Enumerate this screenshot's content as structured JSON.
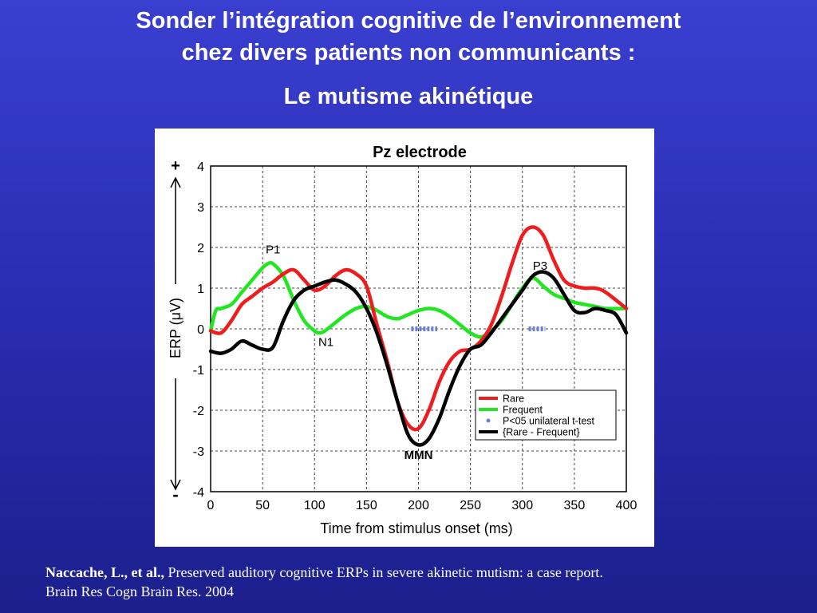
{
  "slide": {
    "title_line1": "Sonder l’intégration cognitive de l’environnement",
    "title_line2": "chez divers patients non communicants :",
    "subtitle": "Le mutisme akinétique"
  },
  "citation": {
    "authors": "Naccache, L., et al.,",
    "title": " Preserved auditory cognitive ERPs in severe akinetic mutism: a case report.",
    "journal": "Brain Res Cogn Brain Res. 2004"
  },
  "colors": {
    "rare": "#ee1c1c",
    "frequent": "#22e622",
    "difference": "#000000",
    "significance": "#6a7fd8"
  },
  "chart_data": {
    "type": "line",
    "title": "Pz electrode",
    "xlabel": "Time from stimulus onset (ms)",
    "ylabel": "ERP (μV)",
    "xlim": [
      0,
      400
    ],
    "ylim": [
      -4,
      4
    ],
    "xticks": [
      "0",
      "50",
      "100",
      "150",
      "200",
      "250",
      "300",
      "350",
      "400"
    ],
    "yticks": [
      "4",
      "3",
      "2",
      "1",
      "0",
      "-1",
      "-2",
      "-3",
      "-4"
    ],
    "grid": true,
    "polarity_plus": "+",
    "polarity_minus": "-",
    "legend_position": "bottom-right",
    "legend": [
      "Rare",
      "Frequent",
      "P<05 unilateral t-test",
      "{Rare - Frequent}"
    ],
    "annotations": [
      {
        "text": "P1",
        "x": 60,
        "y": 1.85
      },
      {
        "text": "N1",
        "x": 111,
        "y": -0.42
      },
      {
        "text": "MMN",
        "x": 200,
        "y": -3.2
      },
      {
        "text": "P3",
        "x": 317,
        "y": 1.45
      }
    ],
    "series": [
      {
        "name": "Rare",
        "x": [
          0,
          10,
          20,
          30,
          40,
          50,
          60,
          70,
          80,
          90,
          100,
          110,
          120,
          130,
          140,
          150,
          160,
          170,
          180,
          190,
          200,
          210,
          220,
          230,
          240,
          250,
          260,
          270,
          280,
          290,
          300,
          310,
          320,
          330,
          340,
          350,
          360,
          370,
          380,
          400
        ],
        "y": [
          -0.05,
          -0.1,
          0.2,
          0.6,
          0.8,
          1.0,
          1.15,
          1.35,
          1.45,
          1.2,
          0.95,
          1.05,
          1.3,
          1.45,
          1.35,
          1.05,
          0.1,
          -0.8,
          -1.8,
          -2.35,
          -2.45,
          -2.0,
          -1.3,
          -0.8,
          -0.55,
          -0.5,
          -0.3,
          0.1,
          0.8,
          1.6,
          2.3,
          2.5,
          2.3,
          1.7,
          1.2,
          1.05,
          1.0,
          1.0,
          0.9,
          0.5
        ]
      },
      {
        "name": "Frequent",
        "x": [
          0,
          5,
          10,
          20,
          30,
          40,
          50,
          55,
          60,
          70,
          80,
          90,
          100,
          105,
          110,
          120,
          130,
          140,
          150,
          160,
          170,
          180,
          190,
          200,
          210,
          220,
          230,
          240,
          250,
          260,
          270,
          280,
          290,
          300,
          310,
          320,
          330,
          340,
          350,
          360,
          370,
          380,
          400
        ],
        "y": [
          -0.05,
          0.45,
          0.5,
          0.6,
          0.9,
          1.2,
          1.5,
          1.6,
          1.6,
          1.3,
          0.7,
          0.2,
          -0.05,
          -0.1,
          -0.05,
          0.15,
          0.35,
          0.5,
          0.55,
          0.45,
          0.3,
          0.25,
          0.35,
          0.45,
          0.5,
          0.45,
          0.3,
          0.1,
          -0.1,
          -0.2,
          -0.05,
          0.2,
          0.6,
          1.0,
          1.25,
          1.05,
          0.85,
          0.75,
          0.65,
          0.6,
          0.55,
          0.5,
          0.5
        ]
      },
      {
        "name": "{Rare - Frequent}",
        "x": [
          0,
          10,
          20,
          30,
          40,
          50,
          60,
          70,
          80,
          90,
          100,
          110,
          120,
          130,
          140,
          150,
          160,
          170,
          180,
          190,
          200,
          210,
          220,
          230,
          240,
          250,
          260,
          270,
          280,
          290,
          300,
          310,
          320,
          330,
          340,
          350,
          360,
          370,
          380,
          390,
          400
        ],
        "y": [
          -0.55,
          -0.6,
          -0.5,
          -0.3,
          -0.4,
          -0.5,
          -0.45,
          0.2,
          0.7,
          0.95,
          1.05,
          1.15,
          1.2,
          1.1,
          0.9,
          0.5,
          -0.1,
          -0.9,
          -1.8,
          -2.6,
          -2.85,
          -2.7,
          -2.2,
          -1.5,
          -0.9,
          -0.5,
          -0.4,
          -0.1,
          0.25,
          0.6,
          0.95,
          1.3,
          1.4,
          1.25,
          0.85,
          0.45,
          0.4,
          0.5,
          0.45,
          0.35,
          -0.1
        ]
      }
    ],
    "significance": [
      {
        "x_start": 193,
        "x_end": 218,
        "y": 0.0
      },
      {
        "x_start": 306,
        "x_end": 322,
        "y": 0.0
      }
    ]
  }
}
